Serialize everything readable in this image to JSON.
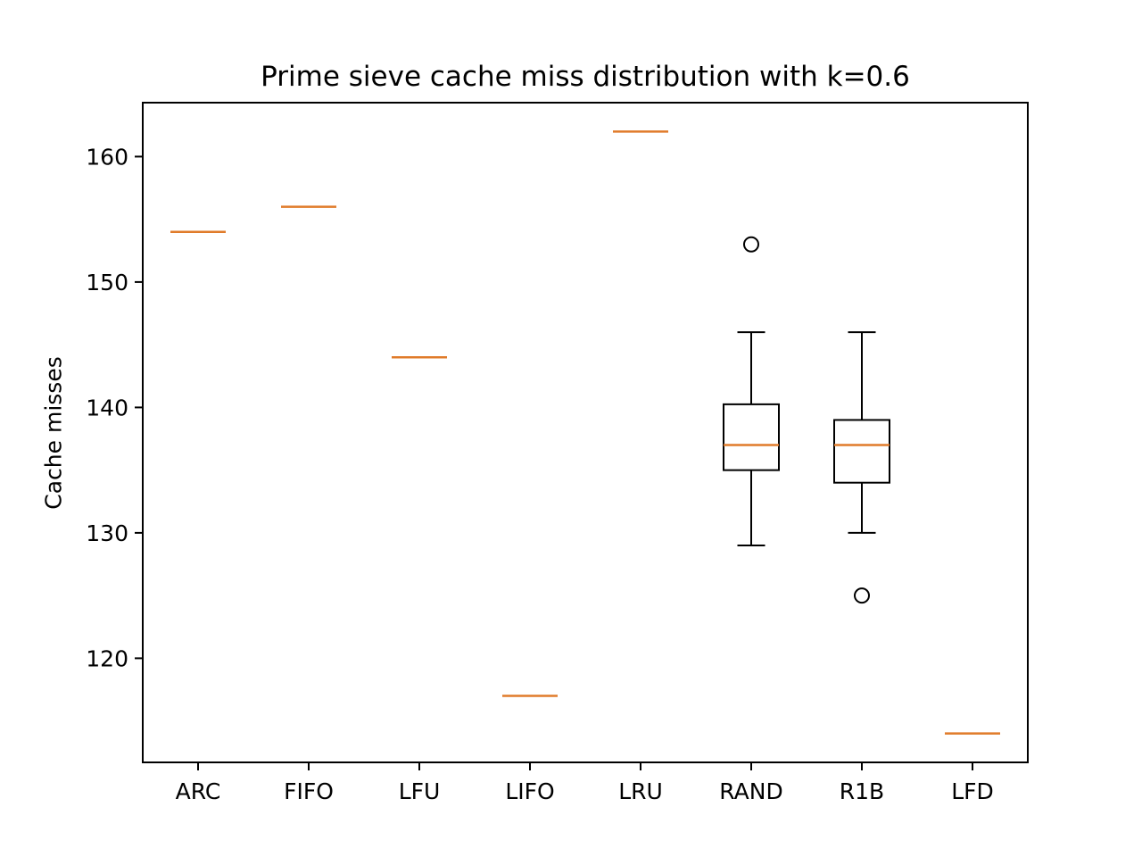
{
  "chart_data": {
    "type": "box",
    "title": "Prime sieve cache miss distribution with k=0.6",
    "xlabel": "",
    "ylabel": "Cache misses",
    "ylim": [
      111.7,
      164.3
    ],
    "yticks": [
      120,
      130,
      140,
      150,
      160
    ],
    "categories": [
      "ARC",
      "FIFO",
      "LFU",
      "LIFO",
      "LRU",
      "RAND",
      "R1B",
      "LFD"
    ],
    "boxes": [
      {
        "label": "ARC",
        "whislo": 154,
        "q1": 154,
        "med": 154,
        "q3": 154,
        "whishi": 154,
        "fliers": []
      },
      {
        "label": "FIFO",
        "whislo": 156,
        "q1": 156,
        "med": 156,
        "q3": 156,
        "whishi": 156,
        "fliers": []
      },
      {
        "label": "LFU",
        "whislo": 144,
        "q1": 144,
        "med": 144,
        "q3": 144,
        "whishi": 144,
        "fliers": []
      },
      {
        "label": "LIFO",
        "whislo": 117,
        "q1": 117,
        "med": 117,
        "q3": 117,
        "whishi": 117,
        "fliers": []
      },
      {
        "label": "LRU",
        "whislo": 162,
        "q1": 162,
        "med": 162,
        "q3": 162,
        "whishi": 162,
        "fliers": []
      },
      {
        "label": "RAND",
        "whislo": 129,
        "q1": 135,
        "med": 137,
        "q3": 140.25,
        "whishi": 146,
        "fliers": [
          153
        ]
      },
      {
        "label": "R1B",
        "whislo": 130,
        "q1": 134,
        "med": 137,
        "q3": 139,
        "whishi": 146,
        "fliers": [
          125
        ]
      },
      {
        "label": "LFD",
        "whislo": 114,
        "q1": 114,
        "med": 114,
        "q3": 114,
        "whishi": 114,
        "fliers": []
      }
    ],
    "colors": {
      "box": "#000000",
      "median": "#e07b2a",
      "flier": "#000000"
    },
    "grid": false,
    "legend": "none"
  }
}
